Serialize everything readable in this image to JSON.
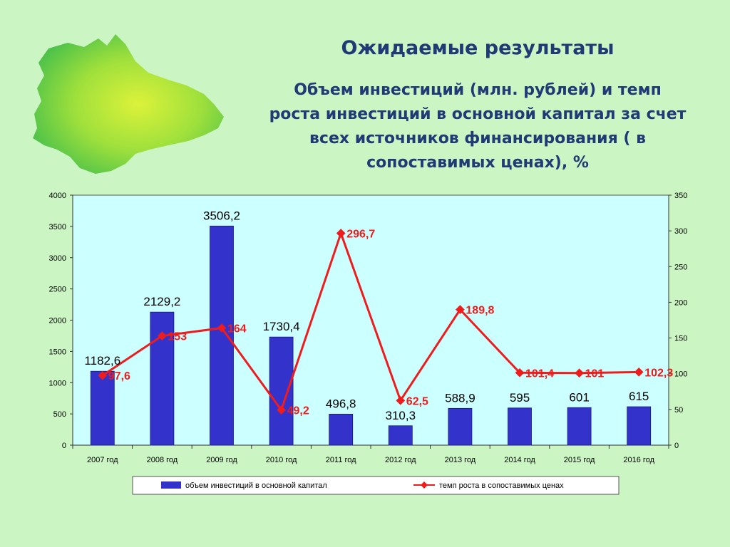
{
  "header": {
    "title": "Ожидаемые результаты",
    "subtitle_lines": [
      "Объем инвестиций (млн. рублей) и темп",
      "роста инвестиций в основной капитал за счет",
      "всех источников финансирования ( в",
      "сопоставимых ценах), %"
    ]
  },
  "map_icon": "region-map-icon",
  "colors": {
    "background": "#ccf5c4",
    "plot_area": "#ccffff",
    "bar": "#3333cc",
    "line": "#ee1c1c",
    "title": "#1f3a75"
  },
  "chart_data": {
    "type": "bar",
    "categories": [
      "2007 год",
      "2008 год",
      "2009 год",
      "2010 год",
      "2011 год",
      "2012 год",
      "2013 год",
      "2014 год",
      "2015 год",
      "2016 год"
    ],
    "series": [
      {
        "name": "объем инвестиций в основной капитал",
        "type": "bar",
        "axis": "left",
        "values": [
          1182.6,
          2129.2,
          3506.2,
          1730.4,
          496.8,
          310.3,
          588.9,
          595,
          601,
          615
        ],
        "labels": [
          "1182,6",
          "2129,2",
          "3506,2",
          "1730,4",
          "496,8",
          "310,3",
          "588,9",
          "595",
          "601",
          "615"
        ]
      },
      {
        "name": "темп роста в сопоставимых ценах",
        "type": "line",
        "axis": "right",
        "values": [
          97.6,
          153,
          164,
          49.2,
          296.7,
          62.5,
          189.8,
          101.4,
          101,
          102.3
        ],
        "labels": [
          "97,6",
          "153",
          "164",
          "49,2",
          "296,7",
          "62,5",
          "189,8",
          "101,4",
          "101",
          "102,3"
        ]
      }
    ],
    "y_left": {
      "range": [
        0,
        4000
      ],
      "ticks": [
        "0",
        "500",
        "1000",
        "1500",
        "2000",
        "2500",
        "3000",
        "3500",
        "4000"
      ]
    },
    "y_right": {
      "range": [
        0,
        350
      ],
      "ticks": [
        "0",
        "50",
        "100",
        "150",
        "200",
        "250",
        "300",
        "350"
      ]
    },
    "grid": false,
    "legend_position": "bottom"
  }
}
